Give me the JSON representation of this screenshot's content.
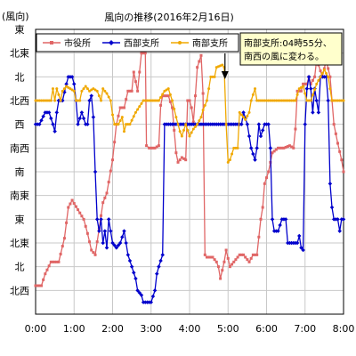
{
  "chart_data": {
    "type": "line",
    "title": "風向の推移(2016年2月16日)",
    "ylabel": "(風向)",
    "xlabel": "",
    "x_ticks": [
      "0:00",
      "1:00",
      "2:00",
      "3:00",
      "4:00",
      "5:00",
      "6:00",
      "7:00",
      "8:00"
    ],
    "y_ticks": [
      "東",
      "北東",
      "北",
      "北西",
      "西",
      "南西",
      "南",
      "南東",
      "東",
      "北東",
      "北",
      "北西"
    ],
    "x_range_hours": [
      0,
      8
    ],
    "y_range_index": [
      0,
      12
    ],
    "grid": true,
    "legend_position": "top-left",
    "annotation": {
      "lines": [
        "南部支所:04時55分、",
        "南西の風に変わる。"
      ],
      "arrow_target_x_hours": 4.92
    },
    "series": [
      {
        "name": "市役所",
        "color": "#e06666",
        "marker": "square",
        "points": [
          [
            0.0,
            10.8
          ],
          [
            0.15,
            10.8
          ],
          [
            0.25,
            10.3
          ],
          [
            0.4,
            9.8
          ],
          [
            0.6,
            9.8
          ],
          [
            0.75,
            8.8
          ],
          [
            0.85,
            7.5
          ],
          [
            0.95,
            7.2
          ],
          [
            1.1,
            7.6
          ],
          [
            1.25,
            8.0
          ],
          [
            1.35,
            8.6
          ],
          [
            1.45,
            9.3
          ],
          [
            1.55,
            9.5
          ],
          [
            1.65,
            8.4
          ],
          [
            1.75,
            7.3
          ],
          [
            1.85,
            6.9
          ],
          [
            2.0,
            5.5
          ],
          [
            2.1,
            4.0
          ],
          [
            2.2,
            3.3
          ],
          [
            2.3,
            3.3
          ],
          [
            2.4,
            2.6
          ],
          [
            2.5,
            2.6
          ],
          [
            2.55,
            1.8
          ],
          [
            2.65,
            2.6
          ],
          [
            2.75,
            1.0
          ],
          [
            2.85,
            1.0
          ],
          [
            2.88,
            4.9
          ],
          [
            2.95,
            5.0
          ],
          [
            3.1,
            5.0
          ],
          [
            3.2,
            4.9
          ],
          [
            3.25,
            3.2
          ],
          [
            3.3,
            2.8
          ],
          [
            3.45,
            2.8
          ],
          [
            3.55,
            3.3
          ],
          [
            3.65,
            5.2
          ],
          [
            3.7,
            5.6
          ],
          [
            3.8,
            5.4
          ],
          [
            3.9,
            5.5
          ],
          [
            3.95,
            3.0
          ],
          [
            4.0,
            3.0
          ],
          [
            4.05,
            3.3
          ],
          [
            4.1,
            3.9
          ],
          [
            4.15,
            2.8
          ],
          [
            4.2,
            1.6
          ],
          [
            4.3,
            1.1
          ],
          [
            4.35,
            2.7
          ],
          [
            4.4,
            9.5
          ],
          [
            4.45,
            9.6
          ],
          [
            4.6,
            9.6
          ],
          [
            4.7,
            9.8
          ],
          [
            4.75,
            10.0
          ],
          [
            4.8,
            10.5
          ],
          [
            4.9,
            9.8
          ],
          [
            4.95,
            9.3
          ],
          [
            5.05,
            10.0
          ],
          [
            5.2,
            9.7
          ],
          [
            5.3,
            9.5
          ],
          [
            5.4,
            9.5
          ],
          [
            5.55,
            9.8
          ],
          [
            5.65,
            9.5
          ],
          [
            5.75,
            9.5
          ],
          [
            5.85,
            8.0
          ],
          [
            5.9,
            7.5
          ],
          [
            5.95,
            6.5
          ],
          [
            6.05,
            6.0
          ],
          [
            6.15,
            5.2
          ],
          [
            6.3,
            5.0
          ],
          [
            6.45,
            5.0
          ],
          [
            6.6,
            4.9
          ],
          [
            6.7,
            5.0
          ],
          [
            6.75,
            4.2
          ],
          [
            6.8,
            2.6
          ],
          [
            6.9,
            2.6
          ],
          [
            6.95,
            2.3
          ],
          [
            7.05,
            2.3
          ],
          [
            7.1,
            2.0
          ],
          [
            7.15,
            2.3
          ],
          [
            7.25,
            2.0
          ],
          [
            7.3,
            1.3
          ],
          [
            7.35,
            1.5
          ],
          [
            7.45,
            2.0
          ],
          [
            7.55,
            1.3
          ],
          [
            7.65,
            2.0
          ],
          [
            7.75,
            4.0
          ],
          [
            7.85,
            4.8
          ],
          [
            7.95,
            5.5
          ],
          [
            8.0,
            6.0
          ]
        ]
      },
      {
        "name": "西部支所",
        "color": "#0000cc",
        "marker": "diamond",
        "points": [
          [
            0.0,
            4.0
          ],
          [
            0.1,
            4.0
          ],
          [
            0.25,
            3.5
          ],
          [
            0.35,
            3.5
          ],
          [
            0.45,
            4.0
          ],
          [
            0.5,
            4.3
          ],
          [
            0.55,
            3.5
          ],
          [
            0.6,
            3.0
          ],
          [
            0.7,
            3.0
          ],
          [
            0.8,
            2.3
          ],
          [
            0.85,
            2.0
          ],
          [
            0.95,
            2.0
          ],
          [
            1.0,
            2.3
          ],
          [
            1.05,
            3.0
          ],
          [
            1.1,
            4.0
          ],
          [
            1.2,
            3.5
          ],
          [
            1.3,
            4.0
          ],
          [
            1.35,
            4.0
          ],
          [
            1.4,
            3.0
          ],
          [
            1.45,
            2.8
          ],
          [
            1.5,
            3.7
          ],
          [
            1.55,
            6.0
          ],
          [
            1.6,
            8.0
          ],
          [
            1.65,
            8.5
          ],
          [
            1.7,
            8.0
          ],
          [
            1.75,
            9.0
          ],
          [
            1.8,
            8.5
          ],
          [
            1.85,
            9.2
          ],
          [
            1.9,
            8.0
          ],
          [
            1.95,
            8.5
          ],
          [
            2.0,
            9.0
          ],
          [
            2.1,
            9.2
          ],
          [
            2.2,
            9.0
          ],
          [
            2.3,
            8.5
          ],
          [
            2.4,
            9.5
          ],
          [
            2.5,
            10.0
          ],
          [
            2.6,
            10.5
          ],
          [
            2.65,
            11.0
          ],
          [
            2.75,
            11.2
          ],
          [
            2.8,
            11.5
          ],
          [
            2.9,
            11.5
          ],
          [
            3.0,
            11.5
          ],
          [
            3.1,
            11.0
          ],
          [
            3.15,
            10.3
          ],
          [
            3.2,
            10.0
          ],
          [
            3.3,
            9.5
          ],
          [
            3.35,
            4.0
          ],
          [
            3.45,
            4.0
          ],
          [
            3.6,
            4.0
          ],
          [
            3.8,
            4.0
          ],
          [
            4.0,
            4.0
          ],
          [
            4.2,
            4.0
          ],
          [
            4.4,
            4.0
          ],
          [
            4.6,
            4.0
          ],
          [
            4.8,
            4.0
          ],
          [
            5.0,
            4.0
          ],
          [
            5.2,
            4.0
          ],
          [
            5.35,
            4.0
          ],
          [
            5.4,
            3.5
          ],
          [
            5.5,
            4.0
          ],
          [
            5.6,
            5.0
          ],
          [
            5.7,
            5.5
          ],
          [
            5.75,
            5.0
          ],
          [
            5.8,
            4.0
          ],
          [
            5.85,
            4.5
          ],
          [
            5.95,
            4.0
          ],
          [
            6.05,
            4.0
          ],
          [
            6.1,
            5.0
          ],
          [
            6.15,
            8.0
          ],
          [
            6.2,
            8.5
          ],
          [
            6.3,
            8.5
          ],
          [
            6.4,
            8.0
          ],
          [
            6.5,
            8.0
          ],
          [
            6.55,
            9.0
          ],
          [
            6.6,
            9.0
          ],
          [
            6.7,
            9.0
          ],
          [
            6.8,
            9.0
          ],
          [
            6.85,
            8.7
          ],
          [
            6.9,
            9.2
          ],
          [
            6.95,
            9.3
          ],
          [
            7.0,
            4.0
          ],
          [
            7.05,
            2.5
          ],
          [
            7.1,
            2.0
          ],
          [
            7.15,
            2.5
          ],
          [
            7.2,
            3.5
          ],
          [
            7.25,
            2.5
          ],
          [
            7.3,
            3.0
          ],
          [
            7.35,
            3.5
          ],
          [
            7.4,
            2.0
          ],
          [
            7.5,
            2.0
          ],
          [
            7.55,
            2.0
          ],
          [
            7.6,
            3.0
          ],
          [
            7.65,
            6.5
          ],
          [
            7.7,
            7.5
          ],
          [
            7.75,
            8.0
          ],
          [
            7.85,
            8.0
          ],
          [
            7.9,
            8.5
          ],
          [
            7.95,
            8.0
          ],
          [
            8.0,
            8.0
          ]
        ]
      },
      {
        "name": "南部支所",
        "color": "#f0a800",
        "marker": "circle",
        "points": [
          [
            0.0,
            3.0
          ],
          [
            0.15,
            3.0
          ],
          [
            0.3,
            3.0
          ],
          [
            0.4,
            3.0
          ],
          [
            0.45,
            2.5
          ],
          [
            0.5,
            3.0
          ],
          [
            0.55,
            2.5
          ],
          [
            0.65,
            3.0
          ],
          [
            0.7,
            2.6
          ],
          [
            0.8,
            2.4
          ],
          [
            0.9,
            2.5
          ],
          [
            1.0,
            2.6
          ],
          [
            1.05,
            3.0
          ],
          [
            1.15,
            3.0
          ],
          [
            1.2,
            2.6
          ],
          [
            1.3,
            2.4
          ],
          [
            1.4,
            2.6
          ],
          [
            1.5,
            2.5
          ],
          [
            1.6,
            2.6
          ],
          [
            1.7,
            3.0
          ],
          [
            1.75,
            2.5
          ],
          [
            1.85,
            2.7
          ],
          [
            1.95,
            3.0
          ],
          [
            2.0,
            3.6
          ],
          [
            2.05,
            4.0
          ],
          [
            2.15,
            4.0
          ],
          [
            2.25,
            3.7
          ],
          [
            2.3,
            4.3
          ],
          [
            2.35,
            4.0
          ],
          [
            2.45,
            4.0
          ],
          [
            2.6,
            3.5
          ],
          [
            2.8,
            3.0
          ],
          [
            3.0,
            3.0
          ],
          [
            3.2,
            3.0
          ],
          [
            3.35,
            2.6
          ],
          [
            3.45,
            2.5
          ],
          [
            3.55,
            3.0
          ],
          [
            3.65,
            3.7
          ],
          [
            3.75,
            4.3
          ],
          [
            3.8,
            4.5
          ],
          [
            3.9,
            4.0
          ],
          [
            4.0,
            4.5
          ],
          [
            4.1,
            4.2
          ],
          [
            4.2,
            4.0
          ],
          [
            4.3,
            3.7
          ],
          [
            4.35,
            3.4
          ],
          [
            4.45,
            3.0
          ],
          [
            4.5,
            2.5
          ],
          [
            4.55,
            2.0
          ],
          [
            4.65,
            2.0
          ],
          [
            4.7,
            1.6
          ],
          [
            4.85,
            1.5
          ],
          [
            4.9,
            1.6
          ],
          [
            4.95,
            4.0
          ],
          [
            5.0,
            5.6
          ],
          [
            5.05,
            5.5
          ],
          [
            5.15,
            5.0
          ],
          [
            5.25,
            5.0
          ],
          [
            5.3,
            3.5
          ],
          [
            5.35,
            3.6
          ],
          [
            5.45,
            3.8
          ],
          [
            5.55,
            3.5
          ],
          [
            5.6,
            3.0
          ],
          [
            5.7,
            2.5
          ],
          [
            5.75,
            3.0
          ],
          [
            5.85,
            3.0
          ],
          [
            5.95,
            3.0
          ],
          [
            6.05,
            3.0
          ],
          [
            6.2,
            3.0
          ],
          [
            6.4,
            3.0
          ],
          [
            6.6,
            3.0
          ],
          [
            6.75,
            3.0
          ],
          [
            6.85,
            2.5
          ],
          [
            6.95,
            2.4
          ],
          [
            7.05,
            3.0
          ],
          [
            7.15,
            3.0
          ],
          [
            7.3,
            2.3
          ],
          [
            7.4,
            2.0
          ],
          [
            7.5,
            1.7
          ],
          [
            7.6,
            2.0
          ],
          [
            7.7,
            3.0
          ],
          [
            7.8,
            3.0
          ],
          [
            8.0,
            3.0
          ]
        ]
      }
    ]
  }
}
